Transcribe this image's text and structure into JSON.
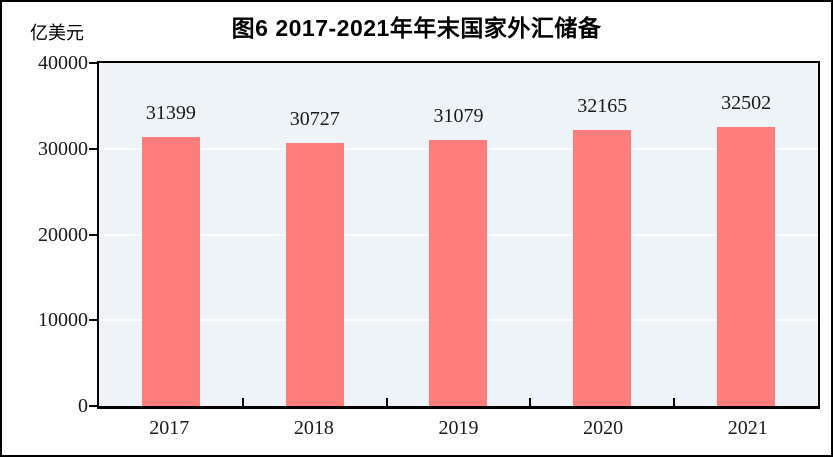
{
  "figure": {
    "title": "图6  2017-2021年年末国家外汇储备",
    "unit_label": "亿美元"
  },
  "chart_data": {
    "type": "bar",
    "title": "图6  2017-2021年年末国家外汇储备",
    "xlabel": "",
    "ylabel": "亿美元",
    "categories": [
      "2017",
      "2018",
      "2019",
      "2020",
      "2021"
    ],
    "values": [
      31399,
      30727,
      31079,
      32165,
      32502
    ],
    "data_labels": [
      "31399",
      "30727",
      "31079",
      "32165",
      "32502"
    ],
    "ylim": [
      0,
      40000
    ],
    "y_ticks": [
      0,
      10000,
      20000,
      30000,
      40000
    ],
    "y_tick_labels": [
      "0",
      "10000",
      "20000",
      "30000",
      "40000"
    ],
    "legend": "none",
    "grid": "horizontal-white-lines-at-y-ticks",
    "colors": {
      "bar": "#FD7C7C",
      "plot_background": "#EEF3F7",
      "gridline": "#FFFFFF",
      "axis": "#000000",
      "text": "#1a1a1a",
      "page_background": "#FFFFFF",
      "page_border": "#000000"
    }
  }
}
